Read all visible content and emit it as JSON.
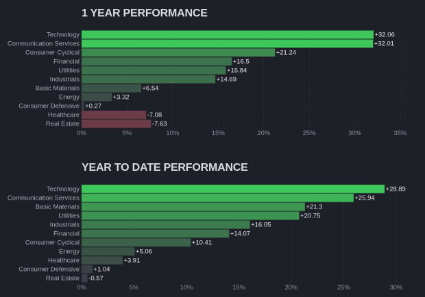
{
  "chart_data": [
    {
      "type": "bar",
      "orientation": "horizontal",
      "title": "1 YEAR PERFORMANCE",
      "categories": [
        "Technology",
        "Communication Services",
        "Consumer Cyclical",
        "Financial",
        "Utilities",
        "Industrials",
        "Basic Materials",
        "Energy",
        "Consumer Defensive",
        "Healthcare",
        "Real Estate"
      ],
      "values": [
        32.06,
        32.01,
        21.24,
        16.5,
        15.84,
        14.69,
        6.54,
        3.32,
        0.27,
        -7.08,
        -7.63
      ],
      "value_labels": [
        "+32.06",
        "+32.01",
        "+21.24",
        "+16.5",
        "+15.84",
        "+14.69",
        "+6.54",
        "+3.32",
        "+0.27",
        "-7.08",
        "-7.63"
      ],
      "xlim": [
        0,
        35
      ],
      "xticks": [
        "0%",
        "5%",
        "10%",
        "15%",
        "20%",
        "25%",
        "30%",
        "35%"
      ],
      "grid": true
    },
    {
      "type": "bar",
      "orientation": "horizontal",
      "title": "YEAR TO DATE PERFORMANCE",
      "categories": [
        "Technology",
        "Communication Services",
        "Basic Materials",
        "Utilities",
        "Industrials",
        "Financial",
        "Consumer Cyclical",
        "Energy",
        "Healthcare",
        "Consumer Defensive",
        "Real Estate"
      ],
      "values": [
        28.89,
        25.94,
        21.3,
        20.75,
        16.05,
        14.07,
        10.41,
        5.06,
        3.91,
        1.04,
        -0.57
      ],
      "value_labels": [
        "+28.89",
        "+25.94",
        "+21.3",
        "+20.75",
        "+16.05",
        "+14.07",
        "+10.41",
        "+5.06",
        "+3.91",
        "+1.04",
        "-0.57"
      ],
      "xlim": [
        0,
        30
      ],
      "xticks": [
        "0%",
        "5%",
        "10%",
        "15%",
        "20%",
        "25%",
        "30%"
      ],
      "grid": true
    }
  ],
  "colors": {
    "positive_high": "#3ec75a",
    "positive_low": "#3b4a46",
    "neutral": "#3a3f48",
    "negative": "#6b3b47",
    "background": "#1e2027"
  }
}
